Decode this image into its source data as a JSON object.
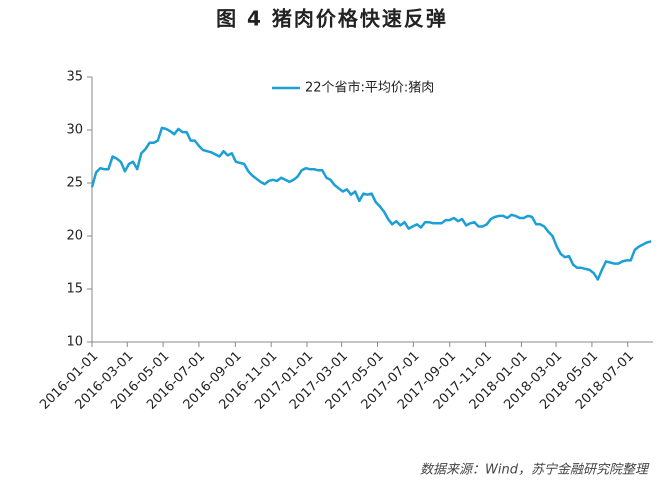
{
  "chart_data": {
    "type": "line",
    "title": "图 4  猪肉价格快速反弹",
    "source": "数据来源：Wind，苏宁金融研究院整理",
    "legend": "top",
    "grid": false,
    "xlim": [
      "2016-01-01",
      "2018-08-13"
    ],
    "ylim": [
      10,
      35
    ],
    "yticks": [
      10,
      15,
      20,
      25,
      30,
      35
    ],
    "xticks": [
      "2016-01-01",
      "2016-03-01",
      "2016-05-01",
      "2016-07-01",
      "2016-09-01",
      "2016-11-01",
      "2017-01-01",
      "2017-03-01",
      "2017-05-01",
      "2017-07-01",
      "2017-09-01",
      "2017-11-01",
      "2018-01-01",
      "2018-03-01",
      "2018-05-01",
      "2018-07-01"
    ],
    "x": [
      "2016-01-01",
      "2016-01-08",
      "2016-01-15",
      "2016-01-22",
      "2016-01-29",
      "2016-02-05",
      "2016-02-12",
      "2016-02-19",
      "2016-02-26",
      "2016-03-04",
      "2016-03-11",
      "2016-03-18",
      "2016-03-25",
      "2016-04-01",
      "2016-04-08",
      "2016-04-15",
      "2016-04-22",
      "2016-04-29",
      "2016-05-06",
      "2016-05-13",
      "2016-05-20",
      "2016-05-27",
      "2016-06-03",
      "2016-06-10",
      "2016-06-17",
      "2016-06-24",
      "2016-07-01",
      "2016-07-08",
      "2016-07-15",
      "2016-07-22",
      "2016-07-29",
      "2016-08-05",
      "2016-08-12",
      "2016-08-19",
      "2016-08-26",
      "2016-09-02",
      "2016-09-09",
      "2016-09-16",
      "2016-09-23",
      "2016-09-30",
      "2016-10-07",
      "2016-10-14",
      "2016-10-21",
      "2016-10-28",
      "2016-11-04",
      "2016-11-11",
      "2016-11-18",
      "2016-11-25",
      "2016-12-02",
      "2016-12-09",
      "2016-12-16",
      "2016-12-23",
      "2016-12-30",
      "2017-01-06",
      "2017-01-13",
      "2017-01-20",
      "2017-01-27",
      "2017-02-03",
      "2017-02-10",
      "2017-02-17",
      "2017-02-24",
      "2017-03-03",
      "2017-03-10",
      "2017-03-17",
      "2017-03-24",
      "2017-03-31",
      "2017-04-07",
      "2017-04-14",
      "2017-04-21",
      "2017-04-28",
      "2017-05-05",
      "2017-05-12",
      "2017-05-19",
      "2017-05-26",
      "2017-06-02",
      "2017-06-09",
      "2017-06-16",
      "2017-06-23",
      "2017-06-30",
      "2017-07-07",
      "2017-07-14",
      "2017-07-21",
      "2017-07-28",
      "2017-08-04",
      "2017-08-11",
      "2017-08-18",
      "2017-08-25",
      "2017-09-01",
      "2017-09-08",
      "2017-09-15",
      "2017-09-22",
      "2017-09-29",
      "2017-10-06",
      "2017-10-13",
      "2017-10-20",
      "2017-10-27",
      "2017-11-03",
      "2017-11-10",
      "2017-11-17",
      "2017-11-24",
      "2017-12-01",
      "2017-12-08",
      "2017-12-15",
      "2017-12-22",
      "2017-12-29",
      "2018-01-05",
      "2018-01-12",
      "2018-01-19",
      "2018-01-26",
      "2018-02-02",
      "2018-02-09",
      "2018-02-16",
      "2018-02-23",
      "2018-03-02",
      "2018-03-09",
      "2018-03-16",
      "2018-03-23",
      "2018-03-30",
      "2018-04-06",
      "2018-04-13",
      "2018-04-20",
      "2018-04-27",
      "2018-05-04",
      "2018-05-11",
      "2018-05-18",
      "2018-05-25",
      "2018-06-01",
      "2018-06-08",
      "2018-06-15",
      "2018-06-22",
      "2018-06-29",
      "2018-07-06",
      "2018-07-13",
      "2018-07-20",
      "2018-07-27",
      "2018-08-03",
      "2018-08-10"
    ],
    "series": [
      {
        "name": "22个省市:平均价:猪肉",
        "color": "#1c9fd6",
        "values": [
          24.6,
          26.0,
          26.4,
          26.3,
          26.3,
          27.5,
          27.3,
          27.0,
          26.1,
          26.8,
          27.0,
          26.3,
          27.8,
          28.2,
          28.8,
          28.8,
          29.0,
          30.2,
          30.1,
          29.9,
          29.6,
          30.1,
          29.8,
          29.8,
          29.0,
          29.0,
          28.5,
          28.1,
          28.0,
          27.9,
          27.7,
          27.5,
          28.0,
          27.6,
          27.8,
          27.0,
          26.9,
          26.8,
          26.1,
          25.7,
          25.4,
          25.1,
          24.9,
          25.2,
          25.3,
          25.2,
          25.5,
          25.3,
          25.1,
          25.3,
          25.6,
          26.2,
          26.4,
          26.3,
          26.3,
          26.2,
          26.2,
          25.5,
          25.3,
          24.8,
          24.5,
          24.2,
          24.4,
          23.9,
          24.2,
          23.3,
          24.0,
          23.9,
          24.0,
          23.2,
          22.8,
          22.3,
          21.6,
          21.1,
          21.4,
          21.0,
          21.3,
          20.7,
          20.9,
          21.1,
          20.8,
          21.3,
          21.3,
          21.2,
          21.2,
          21.2,
          21.5,
          21.5,
          21.7,
          21.4,
          21.6,
          21.0,
          21.2,
          21.3,
          20.9,
          20.9,
          21.1,
          21.6,
          21.8,
          21.9,
          21.9,
          21.7,
          22.0,
          21.9,
          21.7,
          21.7,
          21.9,
          21.8,
          21.1,
          21.1,
          20.9,
          20.4,
          20.0,
          19.0,
          18.3,
          18.0,
          18.1,
          17.3,
          17.0,
          17.0,
          16.9,
          16.8,
          16.5,
          15.9,
          16.8,
          17.6,
          17.5,
          17.4,
          17.4,
          17.6,
          17.7,
          17.7,
          18.7,
          19.0,
          19.2,
          19.4,
          19.5
        ]
      }
    ]
  }
}
